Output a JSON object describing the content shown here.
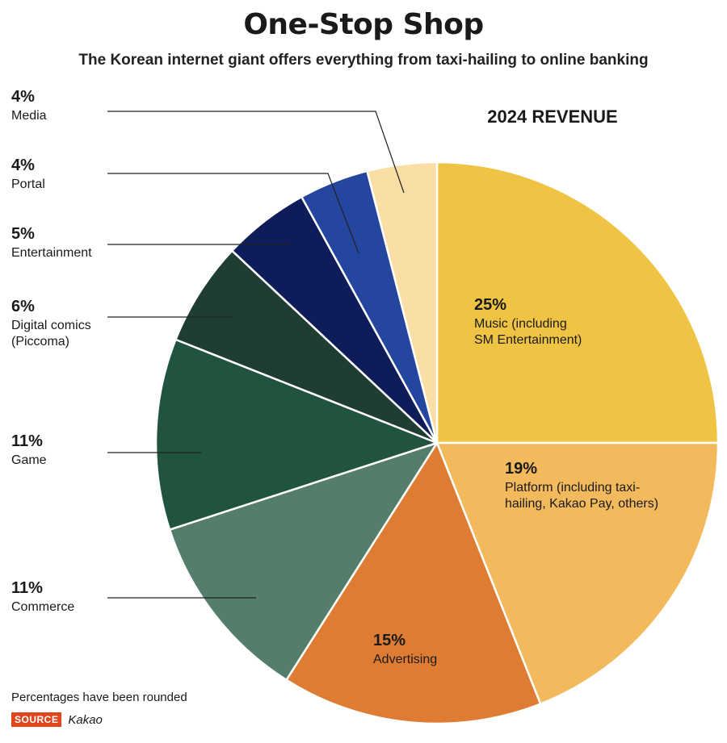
{
  "title": "One-Stop Shop",
  "subtitle": "The Korean internet giant offers everything from taxi-hailing to online banking",
  "footnote": "Percentages have been rounded",
  "source_label": "SOURCE",
  "source_name": "Kakao",
  "chart_data": {
    "type": "pie",
    "title": "2024 REVENUE",
    "start": "12 o'clock, clockwise",
    "slices": [
      {
        "pct_label": "25%",
        "label": [
          "Music (including",
          "SM Entertainment)"
        ],
        "value": 25,
        "color": "#efc445"
      },
      {
        "pct_label": "19%",
        "label": [
          "Platform (including taxi-",
          "hailing, Kakao Pay, others)"
        ],
        "value": 19,
        "color": "#f2b95d"
      },
      {
        "pct_label": "15%",
        "label": [
          "Advertising"
        ],
        "value": 15,
        "color": "#df7c33"
      },
      {
        "pct_label": "11%",
        "label": [
          "Commerce"
        ],
        "value": 11,
        "color": "#557e6a"
      },
      {
        "pct_label": "11%",
        "label": [
          "Game"
        ],
        "value": 11,
        "color": "#21543f"
      },
      {
        "pct_label": "6%",
        "label": [
          "Digital comics",
          "(Piccoma)"
        ],
        "value": 6,
        "color": "#1f3d35"
      },
      {
        "pct_label": "5%",
        "label": [
          "Entertainment"
        ],
        "value": 5,
        "color": "#0f1c5a"
      },
      {
        "pct_label": "4%",
        "label": [
          "Portal"
        ],
        "value": 4,
        "color": "#24469e"
      },
      {
        "pct_label": "4%",
        "label": [
          "Media"
        ],
        "value": 4,
        "color": "#f9dea6"
      }
    ]
  }
}
